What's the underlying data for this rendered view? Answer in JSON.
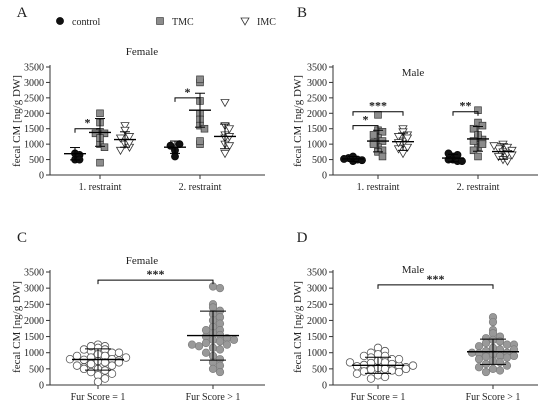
{
  "legend": {
    "entries": [
      {
        "label": "control",
        "marker": "circle-filled"
      },
      {
        "label": "TMC",
        "marker": "square-gray"
      },
      {
        "label": "IMC",
        "marker": "triangle-open"
      }
    ]
  },
  "colors": {
    "control": "#111111",
    "TMC": "#8c8c8c",
    "IMC": "#ffffff",
    "fur_score_1": "#ffffff",
    "fur_score_gt1": "#999999"
  },
  "chart_data": [
    {
      "panel": "A",
      "type": "scatter",
      "title": "Female",
      "ylabel": "fecal CM [ng/g DW]",
      "ylim": [
        0,
        3500
      ],
      "yticks": [
        0,
        500,
        1000,
        1500,
        2000,
        2500,
        3000,
        3500
      ],
      "categories": [
        "1. restraint",
        "2. restraint"
      ],
      "series": [
        {
          "name": "control",
          "points": [
            [
              500,
              700,
              650,
              500
            ],
            [
              800,
              1000,
              600,
              950
            ]
          ],
          "mean": [
            690,
            900
          ],
          "sd": [
            200,
            200
          ]
        },
        {
          "name": "TMC",
          "points": [
            [
              1000,
              2000,
              1400,
              1350,
              1700,
              900,
              400,
              1350,
              1200
            ],
            [
              3000,
              2400,
              3100,
              2000,
              1800,
              1600,
              1000,
              1500,
              1100
            ]
          ],
          "mean": [
            1380,
            2100
          ],
          "sd": [
            450,
            550
          ]
        },
        {
          "name": "IMC",
          "points": [
            [
              1600,
              1450,
              1200,
              1250,
              1000,
              900,
              800,
              1050,
              1200
            ],
            [
              2350,
              1600,
              1300,
              1200,
              1500,
              1000,
              700,
              950,
              1250
            ]
          ],
          "mean": [
            1150,
            1250
          ],
          "sd": [
            250,
            400
          ]
        }
      ],
      "significance": [
        {
          "label": "*",
          "from": [
            "1. restraint",
            "control"
          ],
          "to": [
            "1. restraint",
            "TMC"
          ],
          "y": 1500
        },
        {
          "label": "*",
          "from": [
            "2. restraint",
            "control"
          ],
          "to": [
            "2. restraint",
            "TMC"
          ],
          "y": 2500
        }
      ]
    },
    {
      "panel": "B",
      "type": "scatter",
      "title": "Male",
      "ylabel": "fecal CM [ng/g DW]",
      "ylim": [
        0,
        3500
      ],
      "yticks": [
        0,
        500,
        1000,
        1500,
        2000,
        2500,
        3000,
        3500
      ],
      "categories": [
        "1. restraint",
        "2. restraint"
      ],
      "series": [
        {
          "name": "control",
          "points": [
            [
              450,
              500,
              550,
              480,
              520,
              600
            ],
            [
              500,
              450,
              600,
              500,
              650,
              700,
              450
            ]
          ],
          "mean": [
            520,
            550
          ],
          "sd": [
            80,
            120
          ]
        },
        {
          "name": "TMC",
          "points": [
            [
              1950,
              1450,
              1400,
              1200,
              1100,
              900,
              800,
              1050,
              1300,
              750,
              600,
              1000
            ],
            [
              2100,
              1700,
              1600,
              1500,
              1200,
              1150,
              900,
              1000,
              800,
              600,
              1300,
              1100
            ]
          ],
          "mean": [
            1100,
            1170
          ],
          "sd": [
            350,
            400
          ]
        },
        {
          "name": "IMC",
          "points": [
            [
              1500,
              1400,
              1300,
              1250,
              1100,
              1000,
              900,
              850,
              700,
              1200,
              1050
            ],
            [
              1000,
              900,
              850,
              800,
              750,
              700,
              600,
              500,
              450,
              950,
              650
            ]
          ],
          "mean": [
            1080,
            760
          ],
          "sd": [
            280,
            250
          ]
        }
      ],
      "significance": [
        {
          "label": "*",
          "from": [
            "1. restraint",
            "control"
          ],
          "to": [
            "1. restraint",
            "TMC"
          ],
          "y": 1600
        },
        {
          "label": "***",
          "from": [
            "1. restraint",
            "control"
          ],
          "to": [
            "1. restraint",
            "IMC"
          ],
          "y": 2050
        },
        {
          "label": "**",
          "from": [
            "2. restraint",
            "control"
          ],
          "to": [
            "2. restraint",
            "TMC"
          ],
          "y": 2050
        }
      ]
    },
    {
      "panel": "C",
      "type": "scatter",
      "title": "Female",
      "ylabel": "fecal CM [ng/g DW]",
      "ylim": [
        0,
        3500
      ],
      "yticks": [
        0,
        500,
        1000,
        1500,
        2000,
        2500,
        3000,
        3500
      ],
      "categories": [
        "Fur Score = 1",
        "Fur Score > 1"
      ],
      "series": [
        {
          "name": "Fur Score = 1",
          "points": [
            [
              1250,
              1200,
              1150,
              1100,
              1050,
              1000,
              950,
              900,
              850,
              800,
              780,
              760,
              740,
              700,
              650,
              600,
              550,
              500,
              450,
              400,
              350,
              300,
              200,
              100,
              1200,
              1100,
              1000,
              900,
              850,
              800,
              700,
              600,
              500
            ]
          ],
          "mean": [
            790
          ],
          "sd": [
            330
          ]
        },
        {
          "name": "Fur Score > 1",
          "points": [
            [
              3050,
              3000,
              2500,
              2400,
              2300,
              2200,
              2100,
              2000,
              1900,
              1800,
              1700,
              1600,
              1550,
              1500,
              1450,
              1400,
              1350,
              1300,
              1250,
              1200,
              1150,
              1100,
              1000,
              900,
              800,
              700,
              600,
              500,
              400,
              1700,
              1400,
              1250
            ]
          ],
          "mean": [
            1530
          ],
          "sd": [
            760
          ]
        }
      ],
      "significance": [
        {
          "label": "***",
          "from": [
            "Fur Score = 1"
          ],
          "to": [
            "Fur Score > 1"
          ],
          "y": 3250
        }
      ]
    },
    {
      "panel": "D",
      "type": "scatter",
      "title": "Male",
      "ylabel": "fecal CM [ng/g DW]",
      "ylim": [
        0,
        3500
      ],
      "yticks": [
        0,
        500,
        1000,
        1500,
        2000,
        2500,
        3000,
        3500
      ],
      "categories": [
        "Fur Score = 1",
        "Fur Score > 1"
      ],
      "series": [
        {
          "name": "Fur Score = 1",
          "points": [
            [
              1150,
              1050,
              1000,
              950,
              900,
              850,
              800,
              750,
              700,
              680,
              650,
              620,
              600,
              580,
              550,
              520,
              500,
              480,
              450,
              420,
              400,
              350,
              300,
              250,
              200,
              900,
              800,
              700,
              600,
              500
            ]
          ],
          "mean": [
            610
          ],
          "sd": [
            250
          ]
        },
        {
          "name": "Fur Score > 1",
          "points": [
            [
              2100,
              1950,
              1700,
              1600,
              1500,
              1450,
              1400,
              1350,
              1300,
              1250,
              1200,
              1150,
              1100,
              1050,
              1000,
              980,
              950,
              900,
              880,
              850,
              800,
              750,
              700,
              650,
              600,
              550,
              500,
              450,
              400,
              1250,
              1100,
              1000,
              900
            ]
          ],
          "mean": [
            1030
          ],
          "sd": [
            390
          ]
        }
      ],
      "significance": [
        {
          "label": "***",
          "from": [
            "Fur Score = 1"
          ],
          "to": [
            "Fur Score > 1"
          ],
          "y": 3100
        }
      ]
    }
  ]
}
